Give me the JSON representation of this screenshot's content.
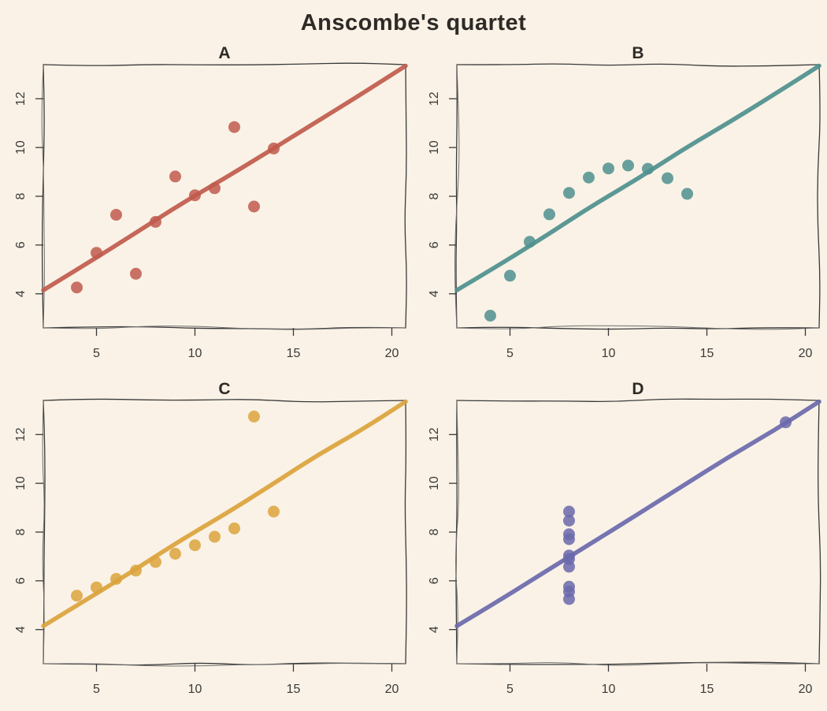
{
  "title": "Anscombe's quartet",
  "colors": {
    "background": "#faf2e6",
    "axis": "#3a3a3a",
    "spine": "#6f6f6f",
    "text": "#2e2a26",
    "tick_text": "#3a3a3a"
  },
  "axes": {
    "xlim": [
      2.3,
      20.7
    ],
    "ylim": [
      2.6,
      13.4
    ],
    "xticks": [
      5,
      10,
      15,
      20
    ],
    "yticks": [
      4,
      6,
      8,
      10,
      12
    ],
    "grid": false,
    "legend": "none",
    "style": "hand-drawn"
  },
  "chart_data": [
    {
      "type": "scatter",
      "title": "A",
      "color": "#c05b4d",
      "x": [
        10,
        8,
        13,
        9,
        11,
        14,
        6,
        4,
        12,
        7,
        5
      ],
      "y": [
        8.04,
        6.95,
        7.58,
        8.81,
        8.33,
        9.96,
        7.24,
        4.26,
        10.84,
        4.82,
        5.68
      ],
      "fit": {
        "intercept": 3.0,
        "slope": 0.5
      }
    },
    {
      "type": "scatter",
      "title": "B",
      "color": "#4e908e",
      "x": [
        10,
        8,
        13,
        9,
        11,
        14,
        6,
        4,
        12,
        7,
        5
      ],
      "y": [
        9.14,
        8.14,
        8.74,
        8.77,
        9.26,
        8.1,
        6.13,
        3.1,
        9.13,
        7.26,
        4.74
      ],
      "fit": {
        "intercept": 3.0,
        "slope": 0.5
      }
    },
    {
      "type": "scatter",
      "title": "C",
      "color": "#dba33c",
      "x": [
        10,
        8,
        13,
        9,
        11,
        14,
        6,
        4,
        12,
        7,
        5
      ],
      "y": [
        7.46,
        6.77,
        12.74,
        7.11,
        7.81,
        8.84,
        6.08,
        5.39,
        8.15,
        6.42,
        5.73
      ],
      "fit": {
        "intercept": 3.0,
        "slope": 0.5
      }
    },
    {
      "type": "scatter",
      "title": "D",
      "color": "#6a69ac",
      "x": [
        8,
        8,
        8,
        8,
        8,
        8,
        8,
        19,
        8,
        8,
        8
      ],
      "y": [
        6.58,
        5.76,
        7.71,
        8.84,
        8.47,
        7.04,
        5.25,
        12.5,
        5.56,
        7.91,
        6.89
      ],
      "fit": {
        "intercept": 3.0,
        "slope": 0.5
      }
    }
  ]
}
